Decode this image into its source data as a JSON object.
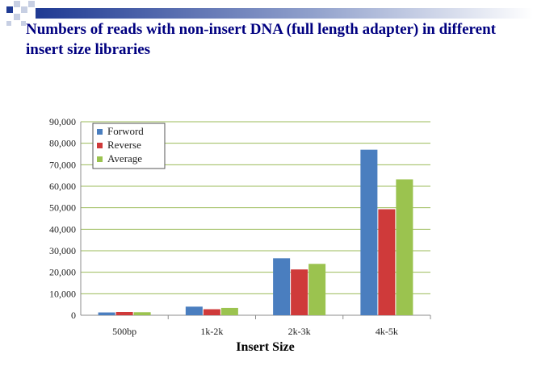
{
  "slide": {
    "title": "Numbers of reads with non-insert DNA (full length adapter) in different insert size libraries"
  },
  "colors": {
    "title": "#000080",
    "gridline": "#9bbb59",
    "deco_dark": "#1f3a93",
    "deco_light": "#c7cfe3"
  },
  "chart_data": {
    "type": "bar",
    "title": "",
    "xlabel": "Insert Size",
    "ylabel": "",
    "categories": [
      "500bp",
      "1k-2k",
      "2k-3k",
      "4k-5k"
    ],
    "series": [
      {
        "name": "Forword",
        "color": "#4a7ebf",
        "values": [
          1300,
          4000,
          26500,
          77000
        ]
      },
      {
        "name": "Reverse",
        "color": "#cf3a3a",
        "values": [
          1500,
          2800,
          21300,
          49300
        ]
      },
      {
        "name": "Average",
        "color": "#9bc34f",
        "values": [
          1400,
          3400,
          23900,
          63200
        ]
      }
    ],
    "ylim": [
      0,
      90000
    ],
    "yticks": [
      "0",
      "10,000",
      "20,000",
      "30,000",
      "40,000",
      "50,000",
      "60,000",
      "70,000",
      "80,000",
      "90,000"
    ],
    "grid": true,
    "legend": "top-left"
  }
}
